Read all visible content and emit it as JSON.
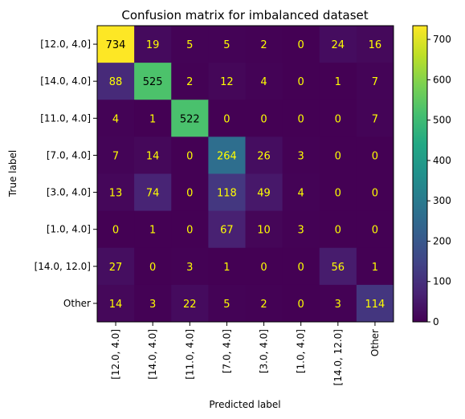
{
  "chart_data": {
    "type": "heatmap",
    "title": "Confusion matrix for imbalanced dataset",
    "xlabel": "Predicted label",
    "ylabel": "True label",
    "row_labels": [
      "[12.0, 4.0]",
      "[14.0, 4.0]",
      "[11.0, 4.0]",
      "[7.0, 4.0]",
      "[3.0, 4.0]",
      "[1.0, 4.0]",
      "[14.0, 12.0]",
      "Other"
    ],
    "col_labels": [
      "[12.0, 4.0]",
      "[14.0, 4.0]",
      "[11.0, 4.0]",
      "[7.0, 4.0]",
      "[3.0, 4.0]",
      "[1.0, 4.0]",
      "[14.0, 12.0]",
      "Other"
    ],
    "matrix": [
      [
        734,
        19,
        5,
        5,
        2,
        0,
        24,
        16
      ],
      [
        88,
        525,
        2,
        12,
        4,
        0,
        1,
        7
      ],
      [
        4,
        1,
        522,
        0,
        0,
        0,
        0,
        7
      ],
      [
        7,
        14,
        0,
        264,
        26,
        3,
        0,
        0
      ],
      [
        13,
        74,
        0,
        118,
        49,
        4,
        0,
        0
      ],
      [
        0,
        1,
        0,
        67,
        10,
        3,
        0,
        0
      ],
      [
        27,
        0,
        3,
        1,
        0,
        0,
        56,
        1
      ],
      [
        14,
        3,
        22,
        5,
        2,
        0,
        3,
        114
      ]
    ],
    "colormap": "viridis",
    "colorbar": {
      "range": [
        0,
        734
      ],
      "ticks": [
        0,
        100,
        200,
        300,
        400,
        500,
        600,
        700
      ]
    },
    "text_color": "#ffff00",
    "grid": false
  }
}
